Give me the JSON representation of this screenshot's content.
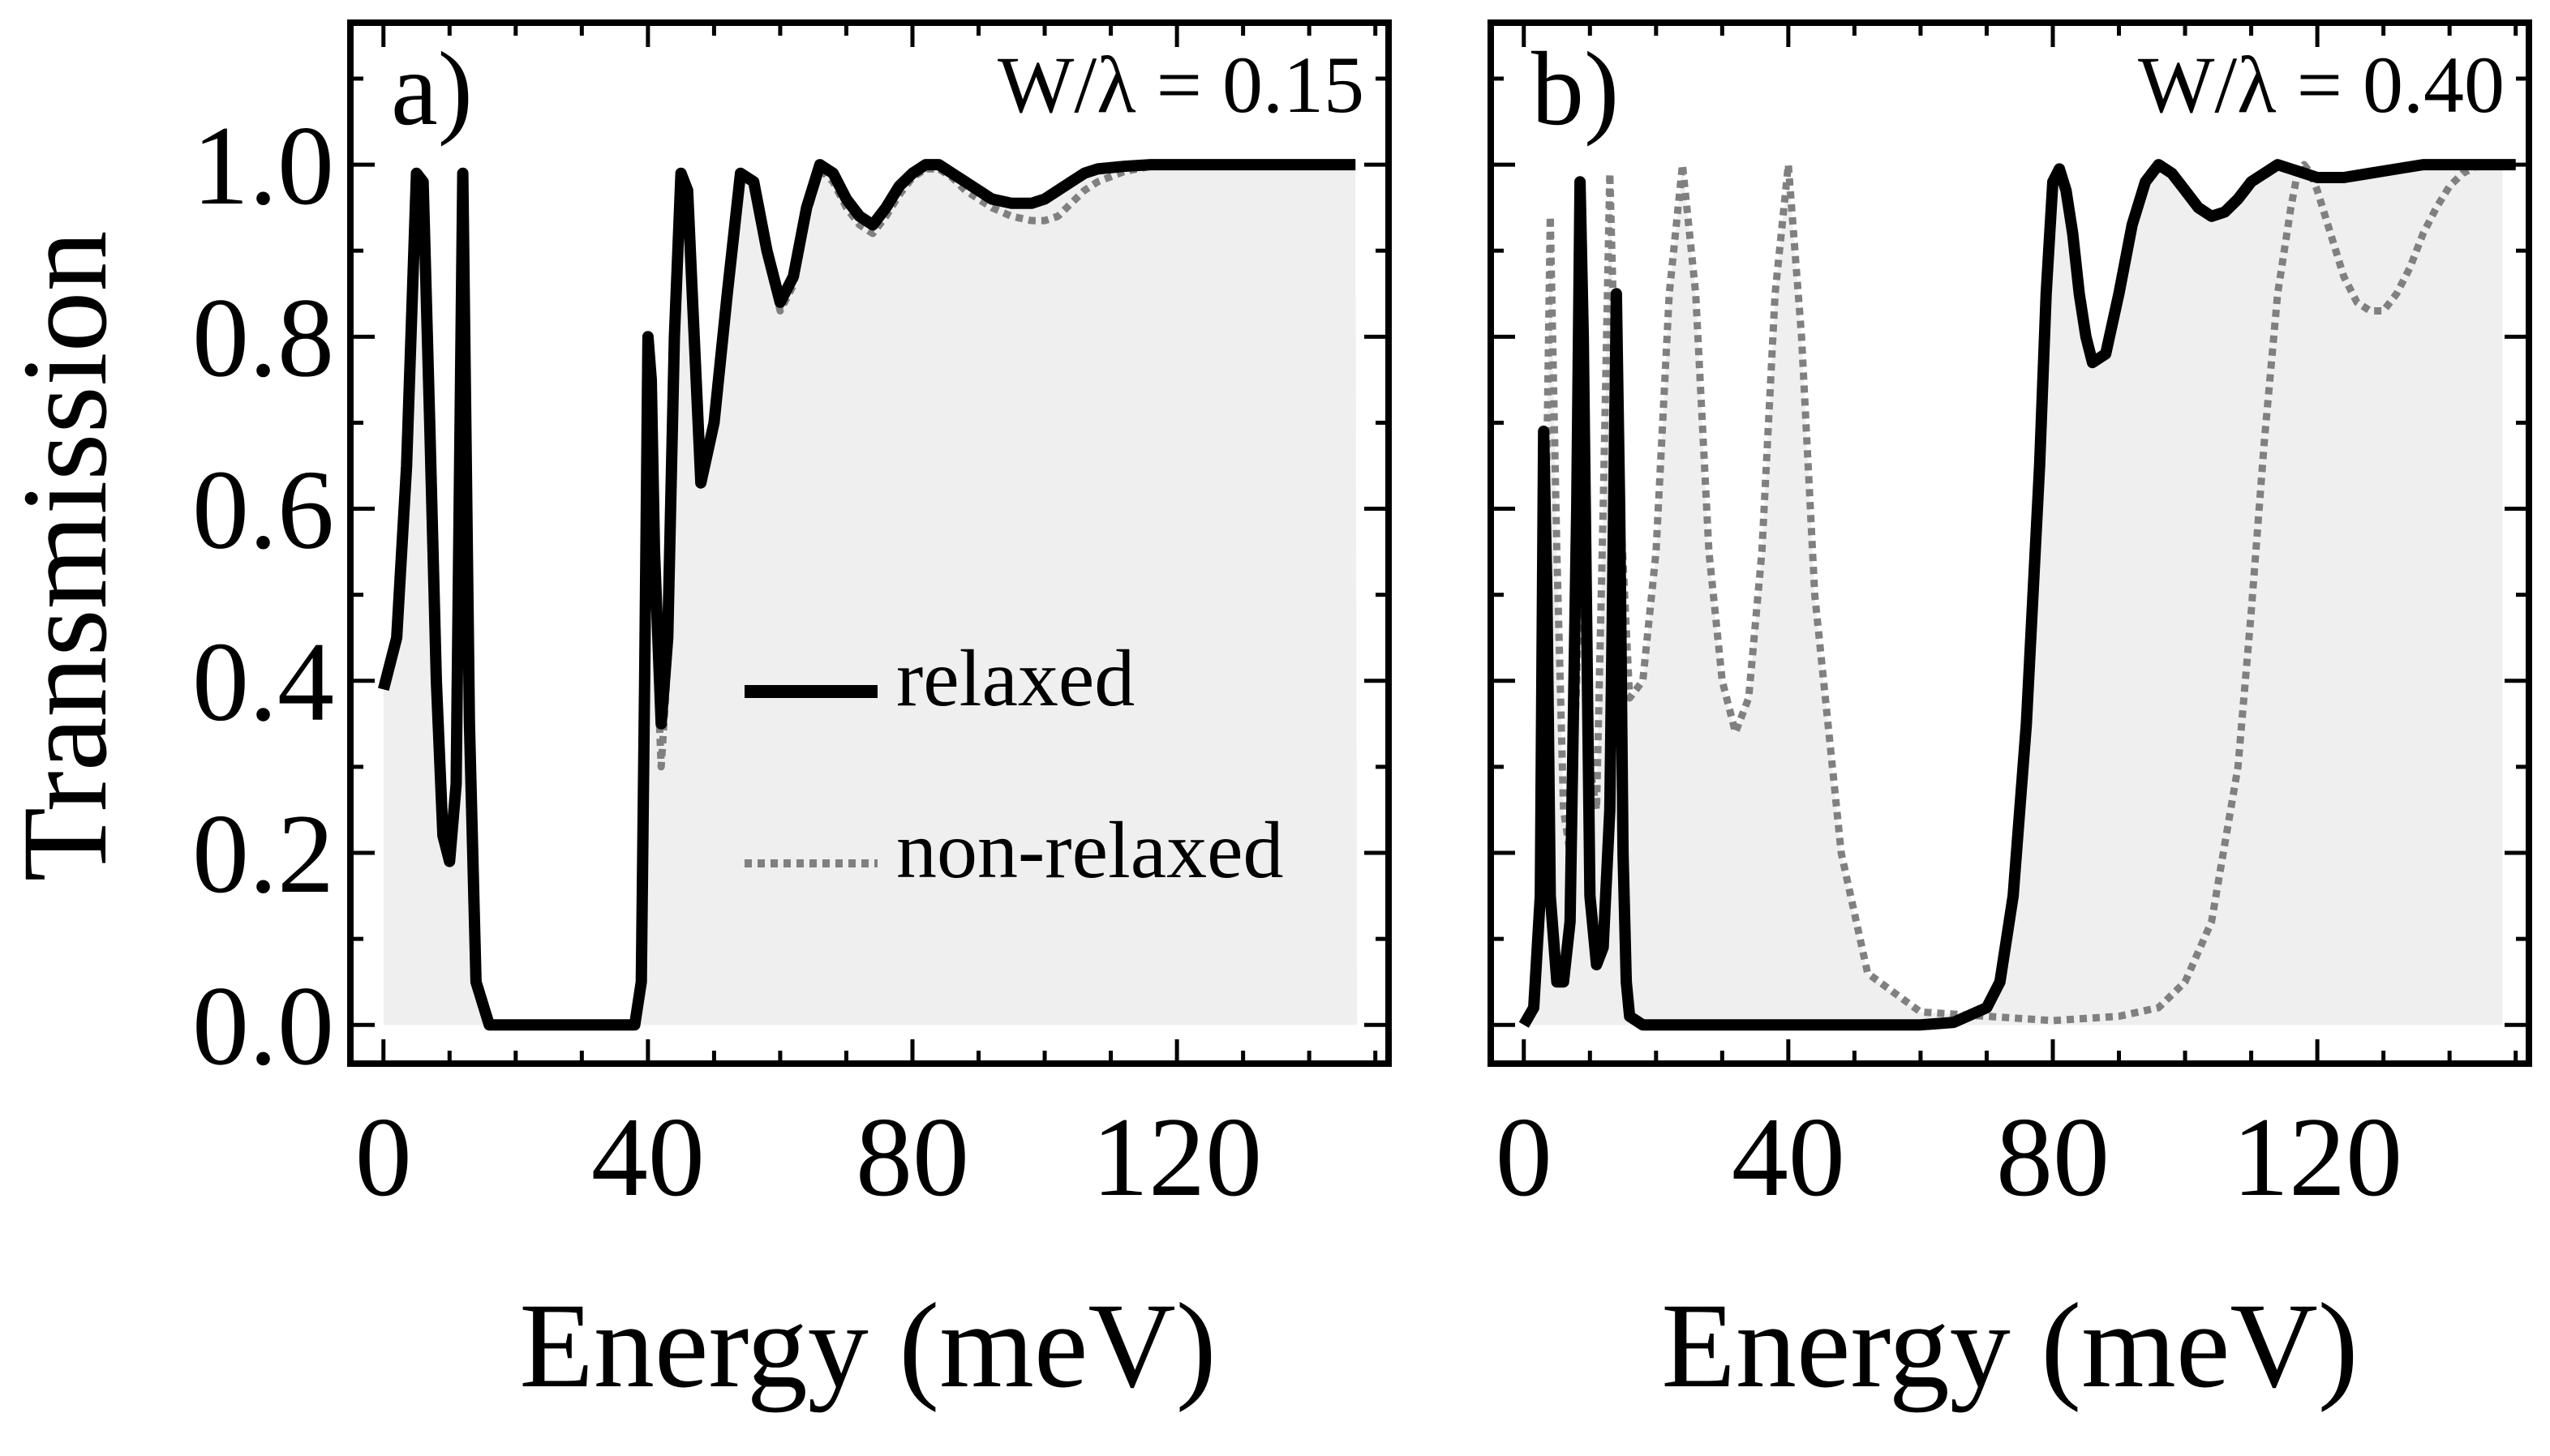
{
  "figure": {
    "ylabel": "Transmission",
    "xlabel": "Energy (meV)",
    "legend": {
      "relaxed": "relaxed",
      "non_relaxed": "non-relaxed",
      "placement": "inside panel a, lower-right"
    }
  },
  "colors": {
    "relaxed": "#000000",
    "non_relaxed": "#808080",
    "fill": "#efefef",
    "frame": "#000000"
  },
  "chart_data": [
    {
      "type": "line",
      "panel": "a)",
      "annotation": "W/λ = 0.15",
      "xlim": [
        -5,
        152
      ],
      "ylim": [
        -0.045,
        1.165
      ],
      "xticks": [
        0,
        40,
        80,
        120
      ],
      "xtick_labels": [
        "0",
        "40",
        "80",
        "120"
      ],
      "yticks": [
        0.0,
        0.2,
        0.4,
        0.6,
        0.8,
        1.0
      ],
      "ytick_labels": [
        "0.0",
        "0.2",
        "0.4",
        "0.6",
        "0.8",
        "1.0"
      ],
      "grid": false,
      "series": [
        {
          "name": "relaxed",
          "style": "solid",
          "x": [
            0,
            2,
            3.5,
            5,
            6,
            7,
            8,
            9,
            10,
            11,
            12,
            13,
            14,
            16,
            20,
            30,
            38,
            39,
            39.5,
            40,
            40.5,
            41,
            42,
            43,
            44,
            45,
            46,
            47,
            48,
            50,
            52,
            54,
            56,
            58,
            60,
            62,
            64,
            66,
            68,
            70,
            72,
            74,
            76,
            78,
            80,
            82,
            84,
            86,
            88,
            90,
            92,
            95,
            98,
            100,
            102,
            104,
            106,
            108,
            112,
            116,
            120,
            130,
            140,
            147
          ],
          "y": [
            0.39,
            0.45,
            0.65,
            0.99,
            0.98,
            0.7,
            0.4,
            0.22,
            0.19,
            0.28,
            0.99,
            0.35,
            0.05,
            0.0,
            0.0,
            0.0,
            0.0,
            0.05,
            0.4,
            0.8,
            0.75,
            0.55,
            0.35,
            0.45,
            0.8,
            0.99,
            0.97,
            0.8,
            0.63,
            0.7,
            0.85,
            0.99,
            0.98,
            0.9,
            0.84,
            0.87,
            0.95,
            1.0,
            0.99,
            0.96,
            0.94,
            0.93,
            0.95,
            0.975,
            0.99,
            1.0,
            1.0,
            0.99,
            0.98,
            0.97,
            0.96,
            0.955,
            0.955,
            0.96,
            0.97,
            0.98,
            0.99,
            0.995,
            0.998,
            1.0,
            1.0,
            1.0,
            1.0,
            1.0
          ]
        },
        {
          "name": "non-relaxed",
          "style": "dotted",
          "x": [
            40,
            40.5,
            41,
            42,
            43,
            44,
            45,
            46,
            47,
            48,
            50,
            52,
            54,
            56,
            58,
            60,
            62,
            64,
            66,
            68,
            70,
            72,
            74,
            76,
            78,
            80,
            82,
            84,
            86,
            88,
            90,
            92,
            95,
            98,
            100,
            102,
            104,
            106,
            108,
            112,
            116,
            120,
            130,
            140,
            147
          ],
          "y": [
            0.8,
            0.73,
            0.5,
            0.3,
            0.42,
            0.78,
            0.99,
            0.97,
            0.8,
            0.63,
            0.7,
            0.85,
            0.99,
            0.98,
            0.9,
            0.83,
            0.86,
            0.94,
            0.995,
            0.98,
            0.95,
            0.93,
            0.92,
            0.94,
            0.965,
            0.985,
            0.995,
            0.995,
            0.985,
            0.97,
            0.96,
            0.95,
            0.94,
            0.935,
            0.935,
            0.94,
            0.955,
            0.97,
            0.98,
            0.992,
            0.998,
            1.0,
            1.0,
            1.0,
            1.0
          ]
        }
      ]
    },
    {
      "type": "line",
      "panel": "b)",
      "annotation": "W/λ = 0.40",
      "xlim": [
        -5,
        152
      ],
      "ylim": [
        -0.045,
        1.165
      ],
      "xticks": [
        0,
        40,
        80,
        120
      ],
      "xtick_labels": [
        "0",
        "40",
        "80",
        "120"
      ],
      "yticks": [
        0.0,
        0.2,
        0.4,
        0.6,
        0.8,
        1.0
      ],
      "ytick_labels": [
        "0.0",
        "0.2",
        "0.4",
        "0.6",
        "0.8",
        "1.0"
      ],
      "grid": false,
      "series": [
        {
          "name": "relaxed",
          "style": "solid",
          "x": [
            0,
            1.5,
            2.5,
            3,
            3.5,
            4,
            5,
            6,
            7,
            8,
            8.5,
            9,
            10,
            11,
            12,
            13,
            14,
            14.5,
            15,
            15.5,
            16,
            18,
            20,
            30,
            40,
            50,
            60,
            65,
            70,
            72,
            74,
            76,
            78,
            79,
            80,
            81,
            82,
            83,
            84,
            85,
            86,
            88,
            90,
            92,
            94,
            96,
            98,
            100,
            102,
            104,
            106,
            108,
            110,
            112,
            114,
            116,
            118,
            120,
            124,
            128,
            132,
            136,
            140,
            145,
            150
          ],
          "y": [
            0.0,
            0.02,
            0.15,
            0.69,
            0.5,
            0.15,
            0.05,
            0.05,
            0.12,
            0.6,
            0.98,
            0.8,
            0.15,
            0.07,
            0.09,
            0.25,
            0.85,
            0.6,
            0.2,
            0.05,
            0.01,
            0.0,
            0.0,
            0.0,
            0.0,
            0.0,
            0.0,
            0.003,
            0.02,
            0.05,
            0.15,
            0.35,
            0.65,
            0.85,
            0.98,
            0.995,
            0.97,
            0.92,
            0.85,
            0.8,
            0.77,
            0.78,
            0.85,
            0.93,
            0.98,
            1.0,
            0.99,
            0.97,
            0.95,
            0.94,
            0.945,
            0.96,
            0.98,
            0.99,
            1.0,
            0.995,
            0.99,
            0.985,
            0.985,
            0.99,
            0.995,
            1.0,
            1.0,
            1.0,
            1.0
          ]
        },
        {
          "name": "non-relaxed",
          "style": "dotted",
          "x": [
            3,
            4,
            5,
            6,
            7,
            8,
            9,
            10,
            11,
            12,
            13,
            14,
            16,
            18,
            20,
            22,
            24,
            26,
            28,
            30,
            32,
            34,
            36,
            38,
            40,
            42,
            44,
            48,
            52,
            60,
            70,
            80,
            90,
            96,
            100,
            104,
            108,
            110,
            112,
            114,
            116,
            117,
            118,
            119,
            120,
            122,
            124,
            126,
            128,
            130,
            132,
            134,
            136,
            138,
            140,
            142,
            144,
            146,
            150
          ],
          "y": [
            0.4,
            0.94,
            0.55,
            0.25,
            0.2,
            0.4,
            0.75,
            0.3,
            0.25,
            0.6,
            0.99,
            0.7,
            0.38,
            0.4,
            0.55,
            0.85,
            1.0,
            0.85,
            0.55,
            0.4,
            0.34,
            0.38,
            0.55,
            0.85,
            1.0,
            0.8,
            0.5,
            0.2,
            0.06,
            0.015,
            0.01,
            0.005,
            0.01,
            0.02,
            0.05,
            0.12,
            0.3,
            0.48,
            0.68,
            0.85,
            0.95,
            0.99,
            1.0,
            0.99,
            0.97,
            0.92,
            0.87,
            0.84,
            0.83,
            0.83,
            0.85,
            0.88,
            0.92,
            0.95,
            0.975,
            0.99,
            0.998,
            1.0,
            1.0
          ]
        }
      ]
    }
  ]
}
